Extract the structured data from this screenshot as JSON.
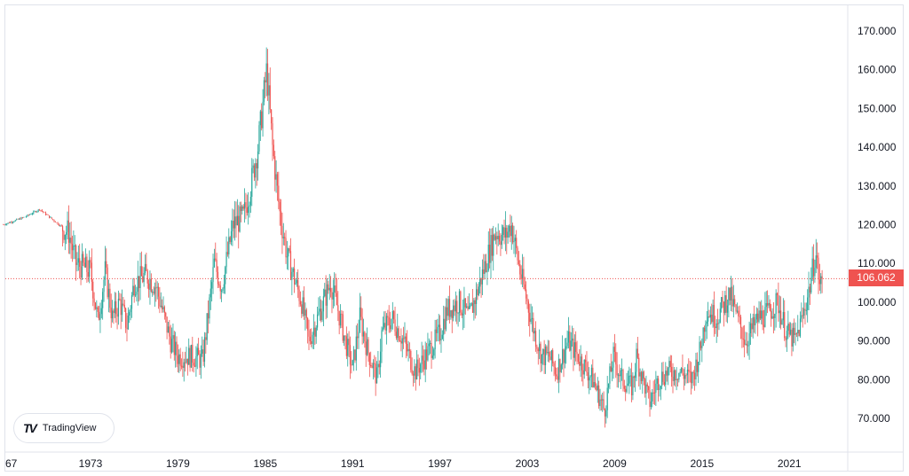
{
  "chart_data": {
    "type": "candlestick",
    "title": "",
    "xlabel": "",
    "ylabel": "",
    "ylim": [
      60,
      175
    ],
    "xlim": [
      1967,
      2025
    ],
    "x_ticks": [
      "67",
      "1973",
      "1979",
      "1985",
      "1991",
      "1997",
      "2003",
      "2009",
      "2015",
      "2021"
    ],
    "y_ticks": [
      "170.000",
      "160.000",
      "150.000",
      "140.000",
      "130.000",
      "120.000",
      "110.000",
      "100.000",
      "90.000",
      "80.000",
      "70.000"
    ],
    "last_price": "106.062",
    "colors": {
      "up": "#26a69a",
      "down": "#ef5350",
      "price_line": "#ef5350"
    },
    "trend": [
      [
        1967,
        120
      ],
      [
        1968.5,
        122
      ],
      [
        1969.5,
        124
      ],
      [
        1970.5,
        121
      ],
      [
        1971.5,
        118
      ],
      [
        1972,
        110
      ],
      [
        1973,
        108
      ],
      [
        1973.5,
        95
      ],
      [
        1974,
        108
      ],
      [
        1974.5,
        96
      ],
      [
        1975,
        100
      ],
      [
        1975.5,
        94
      ],
      [
        1976,
        105
      ],
      [
        1976.8,
        107
      ],
      [
        1977.5,
        104
      ],
      [
        1978.5,
        90
      ],
      [
        1979,
        86
      ],
      [
        1980,
        86
      ],
      [
        1980.7,
        85
      ],
      [
        1981.5,
        110
      ],
      [
        1982,
        104
      ],
      [
        1982.8,
        120
      ],
      [
        1983.5,
        122
      ],
      [
        1984,
        130
      ],
      [
        1984.5,
        140
      ],
      [
        1985.1,
        160
      ],
      [
        1985.5,
        140
      ],
      [
        1986,
        123
      ],
      [
        1986.5,
        112
      ],
      [
        1987.5,
        100
      ],
      [
        1988,
        90
      ],
      [
        1989,
        100
      ],
      [
        1989.5,
        105
      ],
      [
        1990,
        98
      ],
      [
        1990.5,
        90
      ],
      [
        1991,
        83
      ],
      [
        1991.5,
        96
      ],
      [
        1992,
        88
      ],
      [
        1992.7,
        80
      ],
      [
        1993,
        92
      ],
      [
        1993.7,
        96
      ],
      [
        1994.5,
        90
      ],
      [
        1995.3,
        82
      ],
      [
        1996,
        86
      ],
      [
        1997,
        92
      ],
      [
        1997.5,
        98
      ],
      [
        1998.3,
        100
      ],
      [
        1999,
        96
      ],
      [
        1999.5,
        102
      ],
      [
        2000.3,
        112
      ],
      [
        2000.8,
        118
      ],
      [
        2001.5,
        117
      ],
      [
        2001.9,
        120
      ],
      [
        2002.5,
        108
      ],
      [
        2003,
        100
      ],
      [
        2003.5,
        92
      ],
      [
        2004,
        86
      ],
      [
        2004.5,
        86
      ],
      [
        2005,
        82
      ],
      [
        2005.8,
        90
      ],
      [
        2006.5,
        86
      ],
      [
        2007.5,
        80
      ],
      [
        2008.3,
        72
      ],
      [
        2008.9,
        86
      ],
      [
        2009.5,
        80
      ],
      [
        2010.2,
        78
      ],
      [
        2010.5,
        86
      ],
      [
        2011.4,
        74
      ],
      [
        2012,
        80
      ],
      [
        2012.6,
        82
      ],
      [
        2013.5,
        82
      ],
      [
        2014.3,
        80
      ],
      [
        2014.9,
        88
      ],
      [
        2015.3,
        98
      ],
      [
        2016,
        96
      ],
      [
        2016.9,
        102
      ],
      [
        2017.5,
        95
      ],
      [
        2018,
        90
      ],
      [
        2018.9,
        96
      ],
      [
        2019.5,
        97
      ],
      [
        2020.2,
        100
      ],
      [
        2020.8,
        92
      ],
      [
        2021.4,
        90
      ],
      [
        2021.9,
        96
      ],
      [
        2022.4,
        104
      ],
      [
        2022.8,
        113
      ],
      [
        2023.1,
        104
      ],
      [
        2023.3,
        106.062
      ]
    ]
  },
  "branding": {
    "logo_text": "TradingView",
    "logo_mark": "TV"
  }
}
